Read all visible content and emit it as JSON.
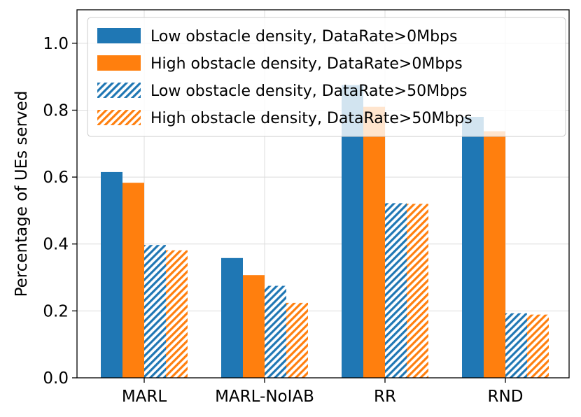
{
  "chart_data": {
    "type": "bar",
    "title": "",
    "xlabel": "",
    "ylabel": "Percentage of UEs served",
    "ylim": [
      0,
      1.1
    ],
    "yticks": [
      "0.0",
      "0.2",
      "0.4",
      "0.6",
      "0.8",
      "1.0"
    ],
    "categories": [
      "MARL",
      "MARL-NoIAB",
      "RR",
      "RND"
    ],
    "grid": true,
    "legend_position": "top-right",
    "series": [
      {
        "name": "Low obstacle density, DataRate>0Mbps",
        "color": "#1f77b4",
        "hatch": false,
        "values": [
          0.615,
          0.358,
          0.875,
          0.78
        ]
      },
      {
        "name": "High obstacle density, DataRate>0Mbps",
        "color": "#ff7f0e",
        "hatch": false,
        "values": [
          0.583,
          0.307,
          0.81,
          0.737
        ]
      },
      {
        "name": "Low obstacle density, DataRate>50Mbps",
        "color": "#1f77b4",
        "hatch": true,
        "values": [
          0.397,
          0.275,
          0.522,
          0.193
        ]
      },
      {
        "name": "High obstacle density, DataRate>50Mbps",
        "color": "#ff7f0e",
        "hatch": true,
        "values": [
          0.381,
          0.224,
          0.52,
          0.189
        ]
      }
    ]
  }
}
